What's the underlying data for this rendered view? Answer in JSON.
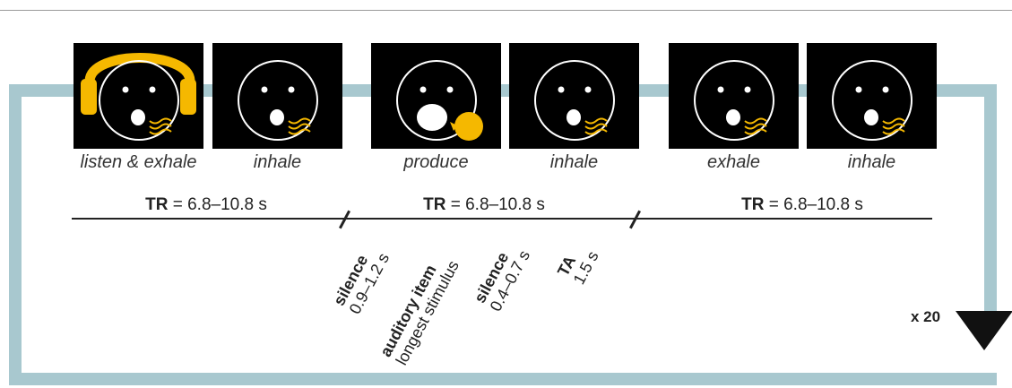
{
  "panels": [
    {
      "caption": "listen & exhale",
      "headphones": true,
      "bubble": false,
      "breath": "exhale"
    },
    {
      "caption": "inhale",
      "headphones": false,
      "bubble": false,
      "breath": "inhale"
    },
    {
      "caption": "produce",
      "headphones": false,
      "bubble": true,
      "breath": "none"
    },
    {
      "caption": "inhale",
      "headphones": false,
      "bubble": false,
      "breath": "inhale"
    },
    {
      "caption": "exhale",
      "headphones": false,
      "bubble": false,
      "breath": "exhale"
    },
    {
      "caption": "inhale",
      "headphones": false,
      "bubble": false,
      "breath": "inhale"
    }
  ],
  "tr": [
    {
      "label": "TR",
      "value": " = 6.8–10.8 s"
    },
    {
      "label": "TR",
      "value": " = 6.8–10.8 s"
    },
    {
      "label": "TR",
      "value": " = 6.8–10.8 s"
    }
  ],
  "phases": [
    {
      "title": "silence",
      "value": "0.9–1.2 s"
    },
    {
      "title": "auditory item",
      "value": "longest stimulus"
    },
    {
      "title": "silence",
      "value": "0.4–0.7 s"
    },
    {
      "title": "TA",
      "value": "1.5 s"
    }
  ],
  "repeat": "x 20",
  "colors": {
    "loop": "#a8c8cf",
    "accent": "#f5b800",
    "panel": "#000000",
    "face": "#ffffff"
  }
}
